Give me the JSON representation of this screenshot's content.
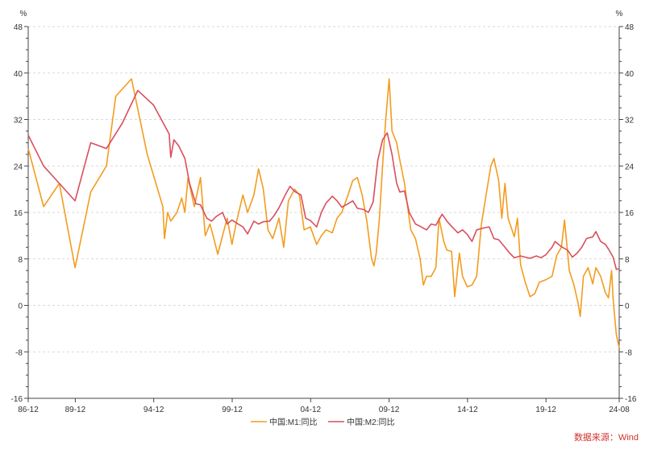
{
  "chart_data": {
    "type": "line",
    "unit_left": "%",
    "unit_right": "%",
    "yticks": [
      48,
      40,
      32,
      24,
      16,
      8,
      0,
      -8,
      -16
    ],
    "ylim": [
      -16,
      48
    ],
    "xlim": [
      1986.917,
      2024.583
    ],
    "xticks": [
      {
        "label": "86-12",
        "x": 1986.917
      },
      {
        "label": "89-12",
        "x": 1989.917
      },
      {
        "label": "94-12",
        "x": 1994.917
      },
      {
        "label": "99-12",
        "x": 1999.917
      },
      {
        "label": "04-12",
        "x": 2004.917
      },
      {
        "label": "09-12",
        "x": 2009.917
      },
      {
        "label": "14-12",
        "x": 2014.917
      },
      {
        "label": "19-12",
        "x": 2019.917
      },
      {
        "label": "24-08",
        "x": 2024.583
      }
    ],
    "grid": true,
    "legend_position": "bottom",
    "source_note": "数据来源：Wind",
    "series": [
      {
        "name": "中国:M1:同比",
        "color": "#f39c1f",
        "points": [
          [
            1986.917,
            27
          ],
          [
            1987.9,
            17
          ],
          [
            1988.9,
            21
          ],
          [
            1989.9,
            6.5
          ],
          [
            1990.9,
            19.5
          ],
          [
            1991.9,
            24
          ],
          [
            1992.5,
            36
          ],
          [
            1993.5,
            39
          ],
          [
            1994.5,
            26
          ],
          [
            1995.5,
            17
          ],
          [
            1995.6,
            11.5
          ],
          [
            1995.8,
            16
          ],
          [
            1996.0,
            14.5
          ],
          [
            1996.4,
            16
          ],
          [
            1996.7,
            18.5
          ],
          [
            1996.9,
            16
          ],
          [
            1997.1,
            22
          ],
          [
            1997.5,
            17
          ],
          [
            1997.9,
            22
          ],
          [
            1998.2,
            12
          ],
          [
            1998.5,
            14
          ],
          [
            1998.7,
            12
          ],
          [
            1999.0,
            8.8
          ],
          [
            1999.3,
            12
          ],
          [
            1999.6,
            15
          ],
          [
            1999.9,
            10.5
          ],
          [
            2000.2,
            14.5
          ],
          [
            2000.6,
            19
          ],
          [
            2000.9,
            16
          ],
          [
            2001.3,
            19
          ],
          [
            2001.6,
            23.5
          ],
          [
            2001.9,
            20
          ],
          [
            2002.2,
            13
          ],
          [
            2002.5,
            11.5
          ],
          [
            2002.9,
            15
          ],
          [
            2003.2,
            10
          ],
          [
            2003.5,
            18
          ],
          [
            2003.9,
            20
          ],
          [
            2004.2,
            19
          ],
          [
            2004.5,
            13
          ],
          [
            2004.9,
            13.5
          ],
          [
            2005.3,
            10.5
          ],
          [
            2005.6,
            12
          ],
          [
            2005.9,
            13
          ],
          [
            2006.3,
            12.5
          ],
          [
            2006.6,
            15
          ],
          [
            2006.9,
            16
          ],
          [
            2007.3,
            19
          ],
          [
            2007.6,
            21.5
          ],
          [
            2007.9,
            22
          ],
          [
            2008.2,
            19
          ],
          [
            2008.5,
            14.5
          ],
          [
            2008.8,
            8
          ],
          [
            2008.95,
            6.8
          ],
          [
            2009.1,
            9
          ],
          [
            2009.3,
            15
          ],
          [
            2009.5,
            24
          ],
          [
            2009.7,
            32
          ],
          [
            2009.8,
            35
          ],
          [
            2009.92,
            39
          ],
          [
            2010.1,
            30
          ],
          [
            2010.4,
            28
          ],
          [
            2010.6,
            25
          ],
          [
            2010.9,
            21
          ],
          [
            2011.1,
            17
          ],
          [
            2011.3,
            13
          ],
          [
            2011.6,
            11.5
          ],
          [
            2011.9,
            7.9
          ],
          [
            2012.1,
            3.5
          ],
          [
            2012.3,
            5
          ],
          [
            2012.6,
            5
          ],
          [
            2012.9,
            6.5
          ],
          [
            2013.1,
            15
          ],
          [
            2013.4,
            11
          ],
          [
            2013.6,
            9.5
          ],
          [
            2013.9,
            9.3
          ],
          [
            2014.1,
            1.5
          ],
          [
            2014.4,
            9
          ],
          [
            2014.6,
            5
          ],
          [
            2014.9,
            3.2
          ],
          [
            2015.2,
            3.5
          ],
          [
            2015.5,
            5
          ],
          [
            2015.8,
            14
          ],
          [
            2016.1,
            19
          ],
          [
            2016.4,
            24
          ],
          [
            2016.6,
            25.3
          ],
          [
            2016.9,
            21.5
          ],
          [
            2017.1,
            15
          ],
          [
            2017.3,
            21
          ],
          [
            2017.5,
            15
          ],
          [
            2017.9,
            11.8
          ],
          [
            2018.1,
            15
          ],
          [
            2018.3,
            7
          ],
          [
            2018.6,
            3.9
          ],
          [
            2018.9,
            1.5
          ],
          [
            2019.2,
            2
          ],
          [
            2019.5,
            4
          ],
          [
            2019.9,
            4.4
          ],
          [
            2020.3,
            5
          ],
          [
            2020.6,
            8.6
          ],
          [
            2020.9,
            10
          ],
          [
            2021.1,
            14.7
          ],
          [
            2021.4,
            6
          ],
          [
            2021.7,
            3.5
          ],
          [
            2021.95,
            0.5
          ],
          [
            2022.1,
            -1.9
          ],
          [
            2022.3,
            5
          ],
          [
            2022.6,
            6.5
          ],
          [
            2022.9,
            3.7
          ],
          [
            2023.1,
            6.5
          ],
          [
            2023.4,
            5
          ],
          [
            2023.7,
            2.2
          ],
          [
            2023.9,
            1.3
          ],
          [
            2024.1,
            6
          ],
          [
            2024.2,
            1
          ],
          [
            2024.4,
            -5
          ],
          [
            2024.583,
            -7.3
          ]
        ]
      },
      {
        "name": "中国:M2:同比",
        "color": "#d94f5c",
        "points": [
          [
            1986.917,
            29.3
          ],
          [
            1987.9,
            24
          ],
          [
            1988.9,
            21
          ],
          [
            1989.9,
            18
          ],
          [
            1990.9,
            28
          ],
          [
            1991.9,
            27
          ],
          [
            1992.9,
            31.3
          ],
          [
            1993.9,
            37
          ],
          [
            1994.9,
            34.5
          ],
          [
            1995.9,
            29.5
          ],
          [
            1996.0,
            25.5
          ],
          [
            1996.2,
            28.5
          ],
          [
            1996.5,
            27.5
          ],
          [
            1996.9,
            25.3
          ],
          [
            1997.2,
            21
          ],
          [
            1997.6,
            17.5
          ],
          [
            1997.9,
            17.3
          ],
          [
            1998.3,
            15
          ],
          [
            1998.6,
            14.5
          ],
          [
            1998.9,
            15.3
          ],
          [
            1999.3,
            16
          ],
          [
            1999.6,
            14
          ],
          [
            1999.9,
            14.7
          ],
          [
            2000.3,
            14
          ],
          [
            2000.6,
            13.5
          ],
          [
            2000.9,
            12.3
          ],
          [
            2001.3,
            14.5
          ],
          [
            2001.6,
            14
          ],
          [
            2001.9,
            14.4
          ],
          [
            2002.3,
            14.5
          ],
          [
            2002.6,
            15.5
          ],
          [
            2002.9,
            16.8
          ],
          [
            2003.3,
            19
          ],
          [
            2003.6,
            20.5
          ],
          [
            2003.9,
            19.6
          ],
          [
            2004.3,
            19
          ],
          [
            2004.6,
            15
          ],
          [
            2004.9,
            14.6
          ],
          [
            2005.3,
            13.5
          ],
          [
            2005.6,
            16
          ],
          [
            2005.9,
            17.6
          ],
          [
            2006.3,
            18.8
          ],
          [
            2006.6,
            18
          ],
          [
            2006.9,
            16.9
          ],
          [
            2007.3,
            17.5
          ],
          [
            2007.6,
            18
          ],
          [
            2007.9,
            16.7
          ],
          [
            2008.3,
            16.5
          ],
          [
            2008.6,
            16
          ],
          [
            2008.9,
            17.8
          ],
          [
            2009.2,
            25
          ],
          [
            2009.5,
            28.5
          ],
          [
            2009.8,
            29.7
          ],
          [
            2010.1,
            26
          ],
          [
            2010.4,
            21
          ],
          [
            2010.6,
            19.5
          ],
          [
            2010.9,
            19.7
          ],
          [
            2011.2,
            16
          ],
          [
            2011.6,
            14
          ],
          [
            2011.9,
            13.6
          ],
          [
            2012.3,
            13
          ],
          [
            2012.6,
            14
          ],
          [
            2012.9,
            13.8
          ],
          [
            2013.3,
            15.7
          ],
          [
            2013.6,
            14.5
          ],
          [
            2013.9,
            13.6
          ],
          [
            2014.3,
            12.5
          ],
          [
            2014.6,
            13
          ],
          [
            2014.9,
            12.2
          ],
          [
            2015.2,
            11
          ],
          [
            2015.5,
            13
          ],
          [
            2015.9,
            13.3
          ],
          [
            2016.3,
            13.5
          ],
          [
            2016.6,
            11.5
          ],
          [
            2016.9,
            11.3
          ],
          [
            2017.3,
            10
          ],
          [
            2017.6,
            9
          ],
          [
            2017.9,
            8.2
          ],
          [
            2018.3,
            8.5
          ],
          [
            2018.6,
            8.3
          ],
          [
            2018.9,
            8.1
          ],
          [
            2019.3,
            8.5
          ],
          [
            2019.6,
            8.2
          ],
          [
            2019.9,
            8.7
          ],
          [
            2020.3,
            10
          ],
          [
            2020.5,
            11
          ],
          [
            2020.9,
            10.1
          ],
          [
            2021.3,
            9.5
          ],
          [
            2021.6,
            8.3
          ],
          [
            2021.9,
            9
          ],
          [
            2022.2,
            10
          ],
          [
            2022.5,
            11.5
          ],
          [
            2022.9,
            11.8
          ],
          [
            2023.1,
            12.7
          ],
          [
            2023.4,
            11
          ],
          [
            2023.7,
            10.5
          ],
          [
            2023.9,
            9.7
          ],
          [
            2024.2,
            8.3
          ],
          [
            2024.4,
            6.2
          ],
          [
            2024.583,
            6.3
          ]
        ]
      }
    ]
  }
}
